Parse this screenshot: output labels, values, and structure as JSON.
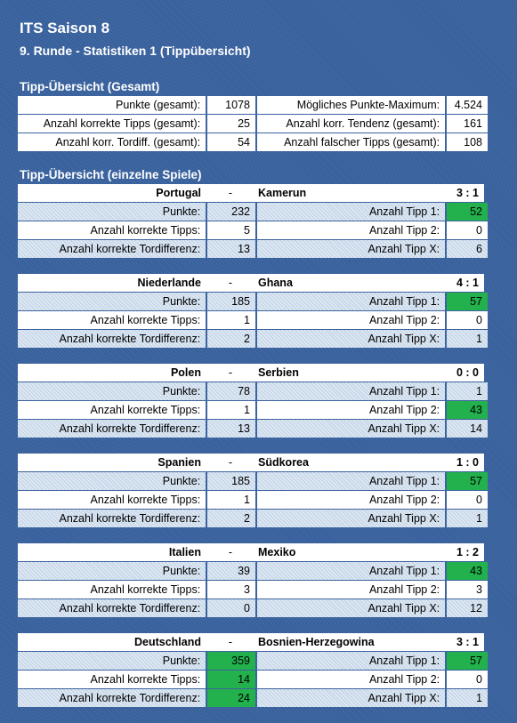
{
  "header": {
    "title": "ITS Saison 8",
    "subtitle": "9. Runde - Statistiken 1 (Tippübersicht)"
  },
  "overview": {
    "heading": "Tipp-Übersicht (Gesamt)",
    "rows": [
      {
        "l_label": "Punkte (gesamt):",
        "l_value": "1078",
        "r_label": "Mögliches Punkte-Maximum:",
        "r_value": "4.524"
      },
      {
        "l_label": "Anzahl korrekte Tipps (gesamt):",
        "l_value": "25",
        "r_label": "Anzahl korr. Tendenz (gesamt):",
        "r_value": "161"
      },
      {
        "l_label": "Anzahl korr. Tordiff. (gesamt):",
        "l_value": "54",
        "r_label": "Anzahl falscher Tipps (gesamt):",
        "r_value": "108"
      }
    ]
  },
  "games_heading": "Tipp-Übersicht (einzelne Spiele)",
  "labels": {
    "dash": "-",
    "points": "Punkte:",
    "correct": "Anzahl korrekte Tipps:",
    "goaldiff": "Anzahl korrekte Tordifferenz:",
    "tip1": "Anzahl Tipp 1:",
    "tip2": "Anzahl Tipp 2:",
    "tipx": "Anzahl Tipp X:"
  },
  "games": [
    {
      "home": "Portugal",
      "away": "Kamerun",
      "score": "3 : 1",
      "points": "232",
      "correct": "5",
      "goaldiff": "13",
      "tip1": "52",
      "tip2": "0",
      "tipx": "6",
      "hl_left": [],
      "hl_right": [
        0
      ]
    },
    {
      "home": "Niederlande",
      "away": "Ghana",
      "score": "4 : 1",
      "points": "185",
      "correct": "1",
      "goaldiff": "2",
      "tip1": "57",
      "tip2": "0",
      "tipx": "1",
      "hl_left": [],
      "hl_right": [
        0
      ]
    },
    {
      "home": "Polen",
      "away": "Serbien",
      "score": "0 : 0",
      "points": "78",
      "correct": "1",
      "goaldiff": "13",
      "tip1": "1",
      "tip2": "43",
      "tipx": "14",
      "hl_left": [],
      "hl_right": [
        1
      ]
    },
    {
      "home": "Spanien",
      "away": "Südkorea",
      "score": "1 : 0",
      "points": "185",
      "correct": "1",
      "goaldiff": "2",
      "tip1": "57",
      "tip2": "0",
      "tipx": "1",
      "hl_left": [],
      "hl_right": [
        0
      ]
    },
    {
      "home": "Italien",
      "away": "Mexiko",
      "score": "1 : 2",
      "points": "39",
      "correct": "3",
      "goaldiff": "0",
      "tip1": "43",
      "tip2": "3",
      "tipx": "12",
      "hl_left": [],
      "hl_right": [
        0
      ]
    },
    {
      "home": "Deutschland",
      "away": "Bosnien-Herzegowina",
      "score": "3 : 1",
      "points": "359",
      "correct": "14",
      "goaldiff": "24",
      "tip1": "57",
      "tip2": "0",
      "tipx": "1",
      "hl_left": [
        0,
        1,
        2
      ],
      "hl_right": [
        0
      ]
    }
  ],
  "colors": {
    "background": "#37609c",
    "row_blue": "#c9d9ea",
    "highlight_green": "#22b14c"
  }
}
